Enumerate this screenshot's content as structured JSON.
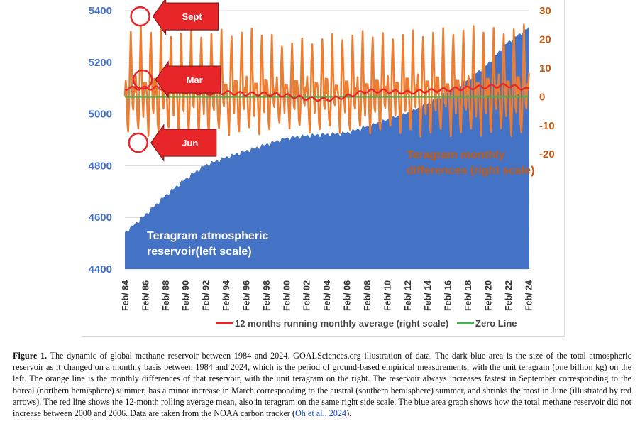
{
  "chart_data": {
    "type": "area",
    "x_tick_labels": [
      "Feb/ 84",
      "Feb/ 86",
      "Feb/ 88",
      "Feb/ 90",
      "Feb/ 92",
      "Feb/ 94",
      "Feb/ 96",
      "Feb/ 98",
      "Feb/ 00",
      "Feb/ 02",
      "Feb/ 04",
      "Feb/ 06",
      "Feb/ 08",
      "Feb/ 10",
      "Feb/ 12",
      "Feb/ 14",
      "Feb/ 16",
      "Feb/ 18",
      "Feb/ 20",
      "Feb/ 22",
      "Feb/ 24"
    ],
    "x_range": [
      1984.08,
      2024.2
    ],
    "y_left": {
      "ticks": [
        "5400",
        "5200",
        "5000",
        "4800",
        "4600",
        "4400"
      ],
      "range": [
        4400,
        5400
      ]
    },
    "y_right": {
      "ticks": [
        "30",
        "20",
        "10",
        "0",
        "-10",
        "-20"
      ],
      "range": [
        -60,
        30
      ]
    },
    "series": [
      {
        "name": "",
        "axis": "left",
        "color": "#4472c4",
        "x": [
          1984.08,
          1986,
          1988,
          1990,
          1992,
          1994,
          1996,
          1998,
          2000,
          2002,
          2004,
          2006,
          2008,
          2010,
          2012,
          2014,
          2016,
          2018,
          2020,
          2022,
          2024.2
        ],
        "values": [
          4540,
          4605,
          4680,
          4745,
          4800,
          4830,
          4855,
          4880,
          4905,
          4915,
          4920,
          4925,
          4950,
          4975,
          5000,
          5035,
          5080,
          5130,
          5190,
          5275,
          5335
        ]
      },
      {
        "name": "",
        "axis": "right",
        "color": "#ed7d31",
        "seasonal_pattern_by_month": {
          "Jan": 5,
          "Feb": 2,
          "Mar": 6,
          "Apr": 1,
          "May": -8,
          "Jun": -12,
          "Jul": -3,
          "Aug": 12,
          "Sep": 22,
          "Oct": 10,
          "Nov": -2,
          "Dec": -5
        },
        "amplitude_scale": {
          "x": [
            1984,
            1986,
            1992,
            1998,
            2000,
            2006,
            2012,
            2020,
            2024
          ],
          "scale": [
            1.0,
            1.05,
            1.0,
            1.0,
            0.85,
            0.95,
            1.0,
            1.05,
            1.1
          ]
        }
      },
      {
        "name": "12 months running monthly average (right scale)",
        "axis": "right",
        "color": "#e8262a",
        "x": [
          1984.08,
          1986,
          1988,
          1990,
          1992,
          1994,
          1996,
          1998,
          2000,
          2002,
          2004,
          2006,
          2008,
          2010,
          2012,
          2014,
          2016,
          2018,
          2020,
          2022,
          2024.2
        ],
        "values": [
          3,
          3,
          3,
          2,
          1,
          1.5,
          1,
          1,
          0.5,
          -0.5,
          -1,
          0,
          2,
          2,
          1.5,
          2,
          2.5,
          3,
          3.5,
          4,
          2.5
        ]
      },
      {
        "name": "Zero Line",
        "axis": "right",
        "color": "#4caf50",
        "x": [
          1984.08,
          2024.2
        ],
        "values": [
          0,
          0
        ]
      }
    ],
    "annotations": {
      "reservoir_label": [
        "Teragram atmospheric",
        "reservoir(left scale)"
      ],
      "differences_label": [
        "Teragram monthly",
        "differences (right scale)"
      ],
      "arrows": [
        {
          "label": "Sept",
          "x": 1985.6,
          "y_right": 28
        },
        {
          "label": "Mar",
          "x": 1985.85,
          "y_right": 6
        },
        {
          "label": "Jun",
          "x": 1985.4,
          "y_right": -16
        }
      ]
    },
    "legend_placement": "bottom",
    "grid": true
  },
  "caption": {
    "label": "Figure 1.",
    "text": " The dynamic of global methane reservoir between 1984 and 2024. GOALSciences.org illustration of data. The dark blue area is the size of the total atmospheric reservoir as it changed on a monthly basis between 1984 and 2024, which is the period of ground-based empirical measurements, with the unit teragram (one billion kg) on the left. The orange line is the monthly differences of that reservoir, with the unit teragram on the right. The reservoir always increases fastest in September corresponding to the boreal (northern hemisphere) summer, has a minor increase in March corresponding to the austral (southern hemisphere) summer, and shrinks the most in June (illustrated by red arrows). The red line shows the 12-month rolling average mean, also in teragram on the same right side scale. The blue area graph shows how the total methane reservoir did not increase between 2000 and 2006. Data are taken from the NOAA carbon tracker (",
    "citation": "Oh et al., 2024",
    "text_end": ")."
  }
}
